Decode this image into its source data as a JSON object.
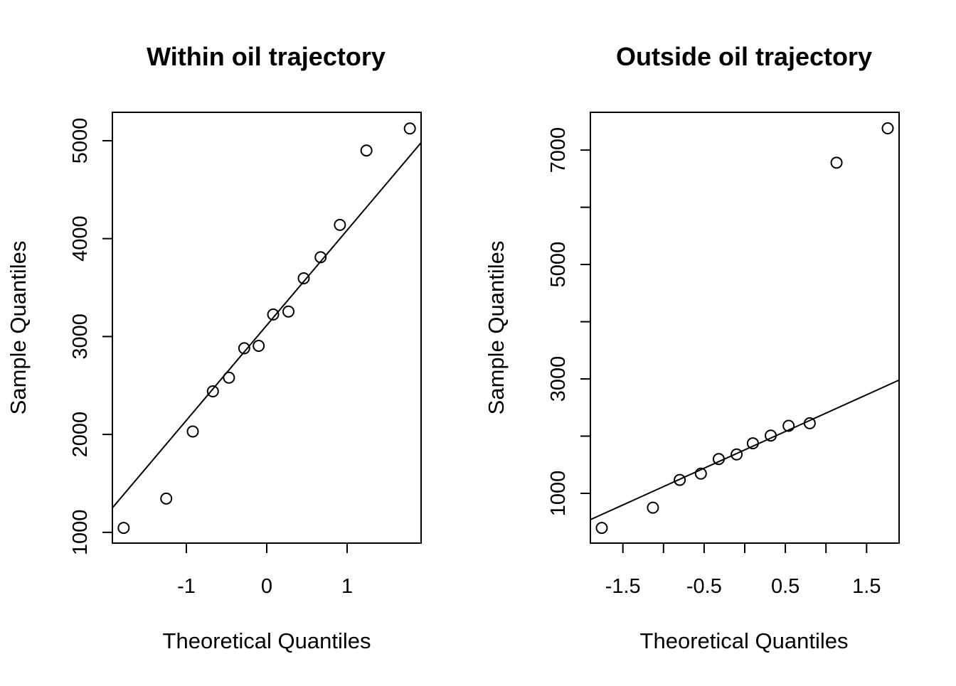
{
  "chart_data": [
    {
      "type": "scatter",
      "title": "Within oil trajectory",
      "xlabel": "Theoretical Quantiles",
      "ylabel": "Sample Quantiles",
      "xlim": [
        -1.92,
        1.92
      ],
      "ylim": [
        890,
        5290
      ],
      "x_ticks": [
        -1,
        0,
        1
      ],
      "x_tick_labels": [
        "-1",
        "0",
        "1"
      ],
      "y_ticks": [
        1000,
        2000,
        3000,
        4000,
        5000
      ],
      "y_tick_labels": [
        "1000",
        "2000",
        "3000",
        "4000",
        "5000"
      ],
      "grid": false,
      "points": [
        {
          "x": -1.78,
          "y": 1045
        },
        {
          "x": -1.25,
          "y": 1345
        },
        {
          "x": -0.92,
          "y": 2030
        },
        {
          "x": -0.67,
          "y": 2440
        },
        {
          "x": -0.47,
          "y": 2580
        },
        {
          "x": -0.28,
          "y": 2880
        },
        {
          "x": -0.1,
          "y": 2905
        },
        {
          "x": 0.08,
          "y": 3225
        },
        {
          "x": 0.27,
          "y": 3255
        },
        {
          "x": 0.46,
          "y": 3595
        },
        {
          "x": 0.67,
          "y": 3810
        },
        {
          "x": 0.91,
          "y": 4140
        },
        {
          "x": 1.24,
          "y": 4900
        },
        {
          "x": 1.78,
          "y": 5125
        }
      ],
      "reference_line": {
        "x": [
          -1.92,
          1.92
        ],
        "y": [
          1250,
          4980
        ]
      }
    },
    {
      "type": "scatter",
      "title": "Outside oil trajectory",
      "xlabel": "Theoretical Quantiles",
      "ylabel": "Sample Quantiles",
      "xlim": [
        -1.9,
        1.9
      ],
      "ylim": [
        130,
        7660
      ],
      "x_ticks": [
        -1.5,
        -1.0,
        -0.5,
        0.0,
        0.5,
        1.0,
        1.5
      ],
      "x_tick_labels": [
        "-1.5",
        "",
        "-0.5",
        "",
        "0.5",
        "",
        "1.5"
      ],
      "y_ticks": [
        1000,
        2000,
        3000,
        4000,
        5000,
        6000,
        7000
      ],
      "y_tick_labels": [
        "1000",
        "",
        "3000",
        "",
        "5000",
        "",
        "7000"
      ],
      "grid": false,
      "points": [
        {
          "x": -1.76,
          "y": 395
        },
        {
          "x": -1.13,
          "y": 750
        },
        {
          "x": -0.8,
          "y": 1235
        },
        {
          "x": -0.54,
          "y": 1345
        },
        {
          "x": -0.32,
          "y": 1600
        },
        {
          "x": -0.1,
          "y": 1680
        },
        {
          "x": 0.1,
          "y": 1875
        },
        {
          "x": 0.32,
          "y": 2010
        },
        {
          "x": 0.54,
          "y": 2180
        },
        {
          "x": 0.8,
          "y": 2225
        },
        {
          "x": 1.13,
          "y": 6780
        },
        {
          "x": 1.76,
          "y": 7380
        }
      ],
      "reference_line": {
        "x": [
          -1.9,
          1.9
        ],
        "y": [
          540,
          2980
        ]
      }
    }
  ]
}
